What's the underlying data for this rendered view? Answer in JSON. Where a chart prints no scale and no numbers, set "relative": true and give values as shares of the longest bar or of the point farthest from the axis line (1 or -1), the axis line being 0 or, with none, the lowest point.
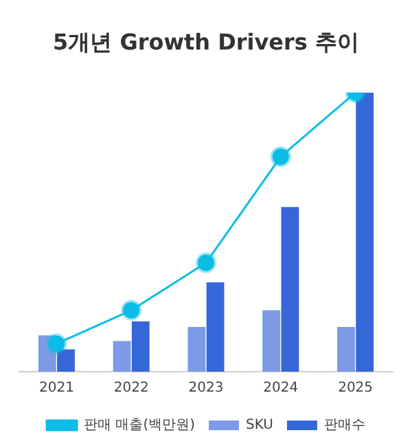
{
  "chart_data": {
    "type": "bar",
    "title": "5개년 Growth Drivers 추이",
    "relative": true,
    "categories": [
      "2021",
      "2022",
      "2023",
      "2024",
      "2025"
    ],
    "series": [
      {
        "name": "SKU",
        "color": "#7b9be6",
        "values": [
          0.13,
          0.11,
          0.16,
          0.22,
          0.16
        ]
      },
      {
        "name": "판매수",
        "color": "#3567d8",
        "values": [
          0.08,
          0.18,
          0.32,
          0.59,
          1
        ]
      },
      {
        "name": "판매 매출(백만원)",
        "type": "line",
        "color": "#0bbde6",
        "marker": "circle",
        "values": [
          0.1,
          0.22,
          0.39,
          0.77,
          1
        ]
      }
    ],
    "legend": "bottom",
    "grid": false
  }
}
